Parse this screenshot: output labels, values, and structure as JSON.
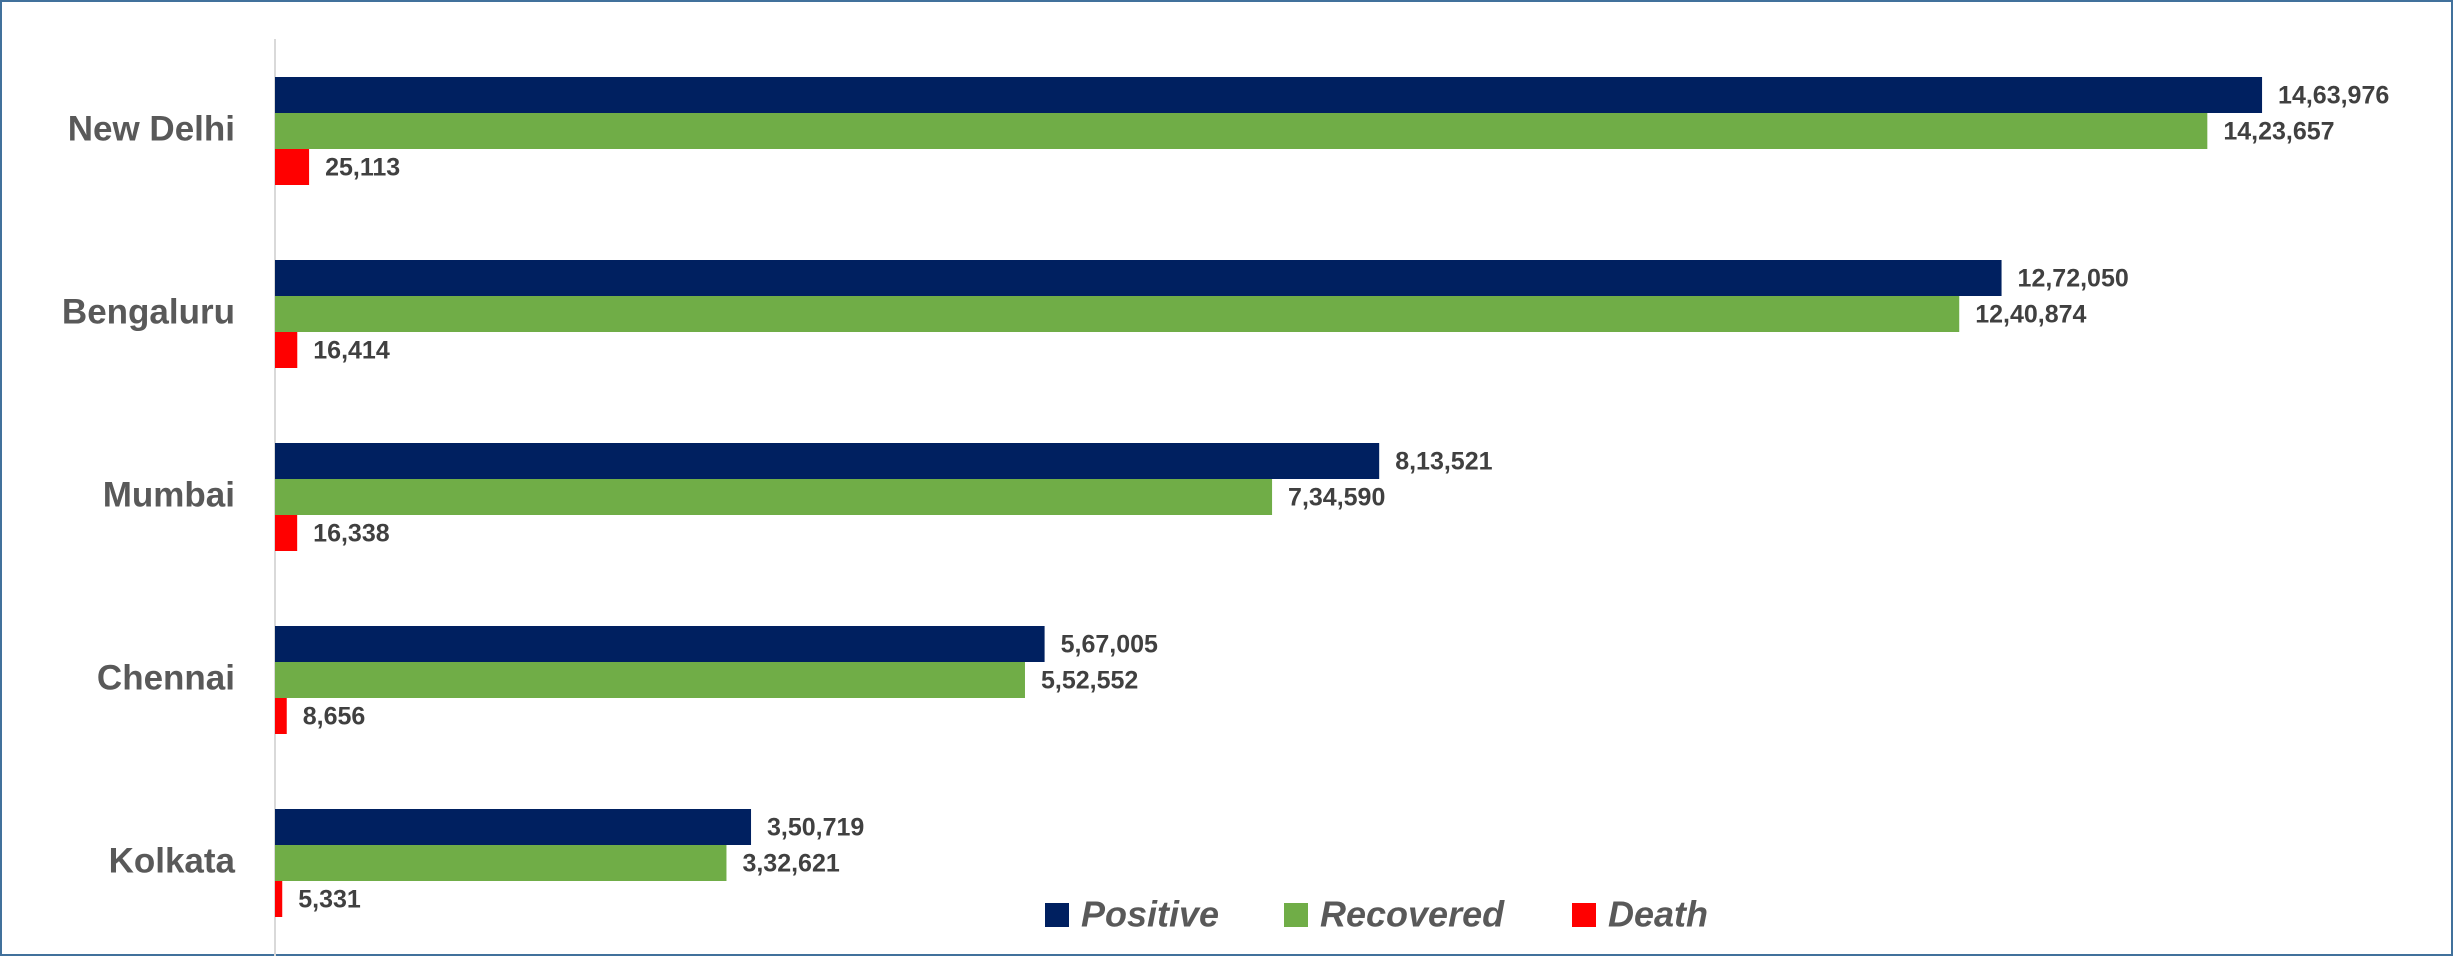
{
  "chart_data": {
    "type": "bar",
    "orientation": "horizontal",
    "categories": [
      "New Delhi",
      "Bengaluru",
      "Mumbai",
      "Chennai",
      "Kolkata"
    ],
    "series": [
      {
        "name": "Positive",
        "color": "#002060",
        "values": [
          1463976,
          1272050,
          813521,
          567005,
          350719
        ],
        "value_labels": [
          "14,63,976",
          "12,72,050",
          "8,13,521",
          "5,67,005",
          "3,50,719"
        ]
      },
      {
        "name": "Recovered",
        "color": "#70ad47",
        "values": [
          1423657,
          1240874,
          734590,
          552552,
          332621
        ],
        "value_labels": [
          "14,23,657",
          "12,40,874",
          "7,34,590",
          "5,52,552",
          "3,32,621"
        ]
      },
      {
        "name": "Death",
        "color": "#ff0000",
        "values": [
          25113,
          16414,
          16338,
          8656,
          5331
        ],
        "value_labels": [
          "25,113",
          "16,414",
          "16,338",
          "8,656",
          "5,331"
        ]
      }
    ],
    "legend": "bottom"
  }
}
